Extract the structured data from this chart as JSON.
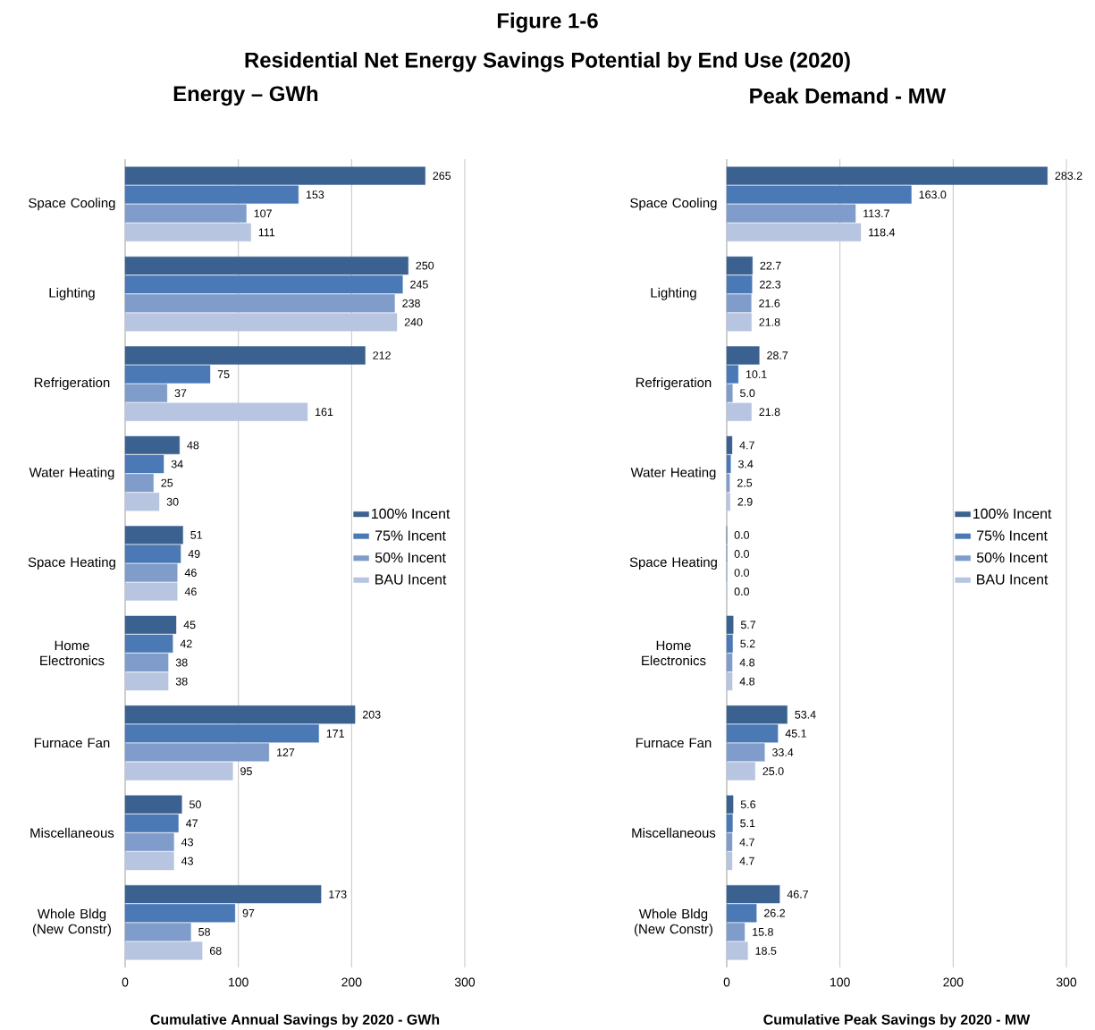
{
  "chart_data": [
    {
      "type": "bar",
      "orientation": "horizontal",
      "title": "Energy – GWh",
      "xlabel": "Cumulative Annual Savings by 2020 - GWh",
      "annotations": [
        "Figure 1-6",
        "Residential Net Energy Savings Potential by End Use (2020)"
      ],
      "categories": [
        "Space Cooling",
        "Lighting",
        "Refrigeration",
        "Water Heating",
        "Space Heating",
        "Home Electronics",
        "Furnace Fan",
        "Miscellaneous",
        "Whole Bldg (New Constr)"
      ],
      "series": [
        {
          "name": "100% Incent",
          "color": "#3b6191",
          "values": [
            265,
            250,
            212,
            48,
            51,
            45,
            203,
            50,
            173
          ]
        },
        {
          "name": "75% Incent",
          "color": "#4a79b5",
          "values": [
            153,
            245,
            75,
            34,
            49,
            42,
            171,
            47,
            97
          ]
        },
        {
          "name": "50% Incent",
          "color": "#7f9ccb",
          "values": [
            107,
            238,
            37,
            25,
            46,
            38,
            127,
            43,
            58
          ]
        },
        {
          "name": "BAU Incent",
          "color": "#b7c5e0",
          "values": [
            111,
            240,
            161,
            30,
            46,
            38,
            95,
            43,
            68
          ]
        }
      ],
      "xlim": [
        0,
        300
      ],
      "xticks": [
        0,
        100,
        200,
        300
      ],
      "grid": "x",
      "legend": "right",
      "data_labels": true
    },
    {
      "type": "bar",
      "orientation": "horizontal",
      "title": "Peak Demand - MW",
      "xlabel": "Cumulative Peak Savings by 2020 - MW",
      "categories": [
        "Space Cooling",
        "Lighting",
        "Refrigeration",
        "Water Heating",
        "Space Heating",
        "Home Electronics",
        "Furnace Fan",
        "Miscellaneous",
        "Whole Bldg (New Constr)"
      ],
      "series": [
        {
          "name": "100% Incent",
          "color": "#3b6191",
          "values": [
            283.2,
            22.7,
            28.7,
            4.7,
            0,
            5.7,
            53.4,
            5.6,
            46.7
          ],
          "value_labels": [
            "283.2",
            "22.7",
            "28.7",
            "4.7",
            "0.0",
            "5.7",
            "53.4",
            "5.6",
            "46.7"
          ]
        },
        {
          "name": "75% Incent",
          "color": "#4a79b5",
          "values": [
            163.0,
            22.3,
            10.1,
            3.4,
            0,
            5.2,
            45.1,
            5.1,
            26.2
          ],
          "value_labels": [
            "163.0",
            "22.3",
            "10.1",
            "3.4",
            "0.0",
            "5.2",
            "45.1",
            "5.1",
            "26.2"
          ]
        },
        {
          "name": "50% Incent",
          "color": "#7f9ccb",
          "values": [
            113.7,
            21.6,
            5.0,
            2.5,
            0,
            4.8,
            33.4,
            4.7,
            15.8
          ],
          "value_labels": [
            "113.7",
            "21.6",
            "5.0",
            "2.5",
            "0.0",
            "4.8",
            "33.4",
            "4.7",
            "15.8"
          ]
        },
        {
          "name": "BAU Incent",
          "color": "#b7c5e0",
          "values": [
            118.4,
            21.8,
            21.8,
            2.9,
            0,
            4.8,
            25.0,
            4.7,
            18.5
          ],
          "value_labels": [
            "118.4",
            "21.8",
            "21.8",
            "2.9",
            "0.0",
            "4.8",
            "25.0",
            "4.7",
            "18.5"
          ]
        }
      ],
      "xlim": [
        0,
        300
      ],
      "xticks": [
        0,
        100,
        200,
        300
      ],
      "grid": "x",
      "legend": "right"
    }
  ]
}
